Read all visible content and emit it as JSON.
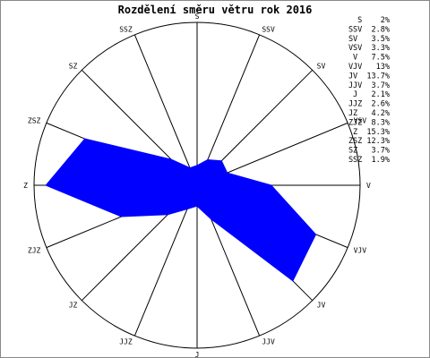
{
  "chart_data": {
    "type": "radar",
    "title": "Rozdělení směru větru rok 2016",
    "categories": [
      "S",
      "SSV",
      "SV",
      "VSV",
      "V",
      "VJV",
      "JV",
      "JJV",
      "J",
      "JJZ",
      "JZ",
      "ZJZ",
      "Z",
      "ZSZ",
      "SZ",
      "SSZ"
    ],
    "values": [
      2,
      2.8,
      3.5,
      3.3,
      7.5,
      13,
      13.7,
      3.7,
      2.1,
      2.6,
      4.2,
      8.3,
      15.3,
      12.3,
      3.7,
      1.9
    ],
    "legend": [
      "S    2%",
      "SSV  2.8%",
      "SV   3.5%",
      "VSV  3.3%",
      "V   7.5%",
      "VJV   13%",
      "JV  13.7%",
      "JJV  3.7%",
      "J   2.1%",
      "JJZ  2.6%",
      "JZ   4.2%",
      "ZJZ  8.3%",
      "Z  15.3%",
      "ZSZ 12.3%",
      "SZ   3.7%",
      "SSZ  1.9%"
    ],
    "legend_position": "top-right",
    "series_color": "#0000ff"
  }
}
